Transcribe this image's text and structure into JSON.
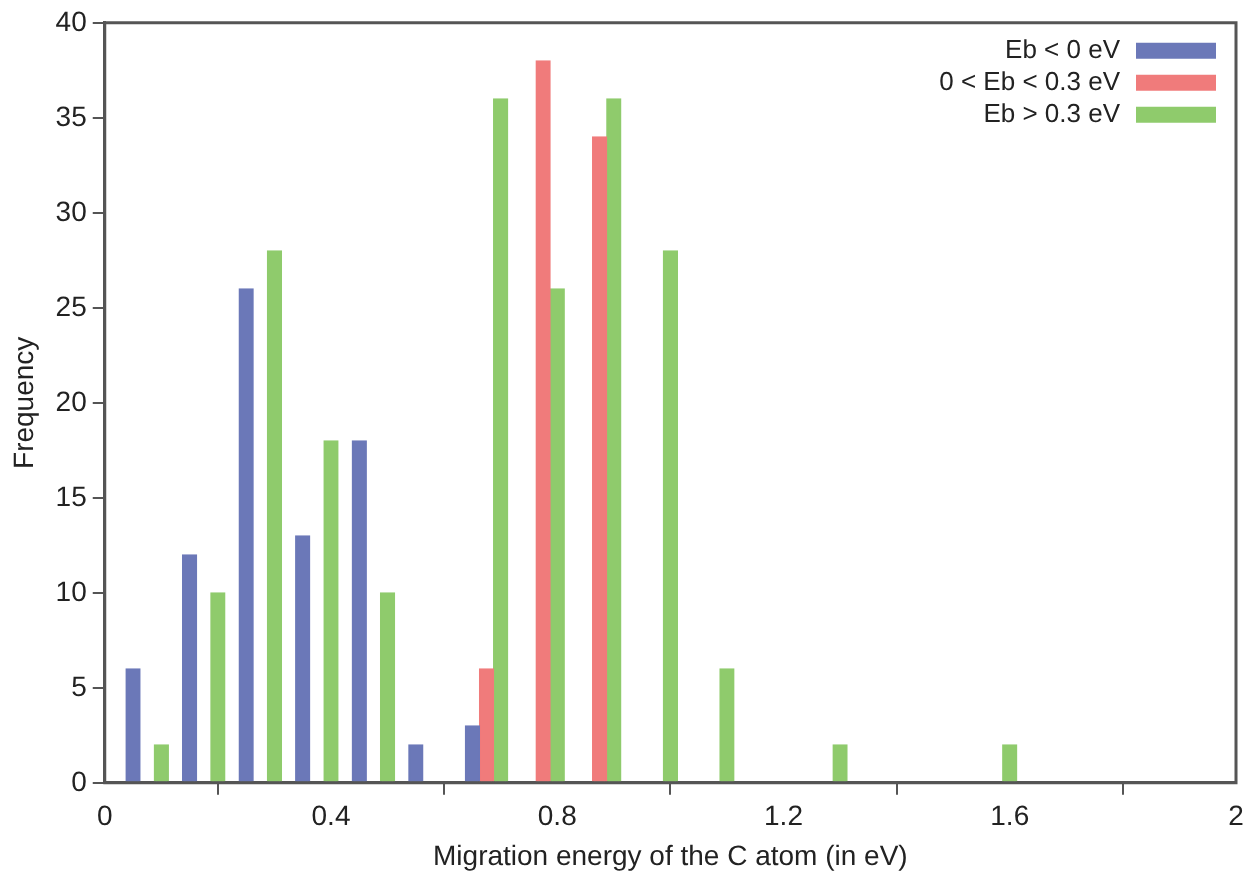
{
  "chart_data": {
    "type": "bar",
    "xlabel": "Migration energy of the C atom (in eV)",
    "ylabel": "Frequency",
    "xlim": [
      0,
      2
    ],
    "xticks": [
      0,
      0.4,
      0.8,
      1.2,
      1.6,
      2
    ],
    "ylim": [
      0,
      40
    ],
    "yticks": [
      0,
      5,
      10,
      15,
      20,
      25,
      30,
      35,
      40
    ],
    "grid": false,
    "legend": "top right",
    "series": [
      {
        "name": "Eb < 0 eV",
        "color": "#6b78b8",
        "x": [
          0.05,
          0.15,
          0.25,
          0.35,
          0.45,
          0.55,
          0.65
        ],
        "values": [
          6,
          12,
          26,
          13,
          18,
          2,
          3
        ]
      },
      {
        "name": "0 < Eb < 0.3 eV",
        "color": "#f07b7b",
        "x": [
          0.675,
          0.775,
          0.875
        ],
        "values": [
          6,
          38,
          34
        ]
      },
      {
        "name": "Eb > 0.3 eV",
        "color": "#8fcb6c",
        "x": [
          0.1,
          0.2,
          0.3,
          0.4,
          0.5,
          0.7,
          0.8,
          0.9,
          1.0,
          1.1,
          1.3,
          1.6
        ],
        "values": [
          2,
          10,
          28,
          18,
          10,
          36,
          26,
          36,
          28,
          6,
          2,
          2
        ]
      }
    ]
  }
}
